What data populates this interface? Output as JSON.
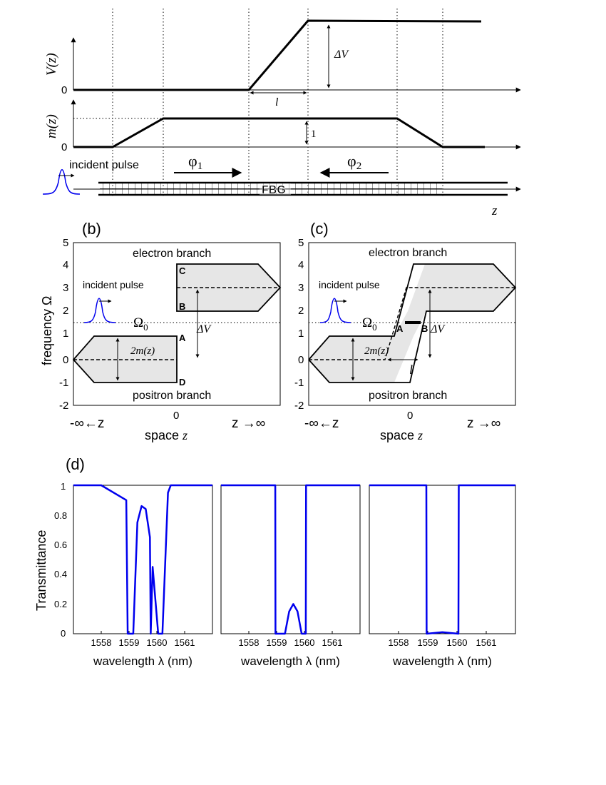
{
  "panel_a": {
    "v_label": "V(z)",
    "v_zero": "0",
    "delta_v": "ΔV",
    "l_label": "l",
    "m_label": "m(z)",
    "m_zero": "0",
    "one_label": "1",
    "incident": "incident pulse",
    "phi1": "φ",
    "phi1_sub": "1",
    "phi2": "φ",
    "phi2_sub": "2",
    "fbg": "FBG",
    "z_label": "z"
  },
  "panel_b": {
    "label": "(b)",
    "electron": "electron branch",
    "positron": "positron branch",
    "incident": "incident pulse",
    "omega0": "Ω",
    "omega0_sub": "0",
    "two_m": "2m(z)",
    "delta_v": "ΔV",
    "pt_a": "A",
    "pt_b": "B",
    "pt_c": "C",
    "pt_d": "D",
    "ylabel": "frequency Ω",
    "xlabel_main": "space ",
    "xlabel_z": "z",
    "x_left": "-∞←z",
    "x_right": "z →∞",
    "x_zero": "0",
    "yticks": [
      "5",
      "4",
      "3",
      "2",
      "1",
      "0",
      "-1",
      "-2"
    ]
  },
  "panel_c": {
    "label": "(c)",
    "electron": "electron branch",
    "positron": "positron branch",
    "incident": "incident pulse",
    "omega0": "Ω",
    "omega0_sub": "0",
    "two_m": "2m(z)",
    "delta_v": "ΔV",
    "l_label": "l",
    "pt_a": "A",
    "pt_b": "B",
    "xlabel_main": "space ",
    "xlabel_z": "z",
    "x_left": "-∞←z",
    "x_right": "z →∞",
    "x_zero": "0",
    "yticks": [
      "5",
      "4",
      "3",
      "2",
      "1",
      "0",
      "-1",
      "-2"
    ]
  },
  "panel_d": {
    "label": "(d)",
    "ylabel": "Transmittance",
    "xlabel": "wavelength λ (nm)",
    "yticks": [
      "1",
      "0.8",
      "0.6",
      "0.4",
      "0.2",
      "0"
    ],
    "xticks": [
      "1558",
      "1559",
      "1560",
      "1561"
    ]
  },
  "colors": {
    "trace": "#0000ee",
    "pulse": "#0000ee",
    "shade": "#e6e6e6"
  },
  "chart_data": [
    {
      "type": "line",
      "title": "",
      "xlabel": "wavelength λ (nm)",
      "ylabel": "Transmittance",
      "xlim": [
        1557,
        1562
      ],
      "ylim": [
        0,
        1
      ],
      "x": [
        1557,
        1558,
        1558.9,
        1558.95,
        1559.0,
        1559.15,
        1559.3,
        1559.45,
        1559.6,
        1559.75,
        1559.78,
        1559.85,
        1560.05,
        1560.1,
        1560.2,
        1560.4,
        1560.5,
        1562
      ],
      "y": [
        1,
        1,
        0.9,
        0.0,
        0.0,
        0.0,
        0.75,
        0.86,
        0.84,
        0.65,
        0.0,
        0.45,
        0.0,
        0.0,
        0.0,
        0.95,
        1,
        1
      ]
    },
    {
      "type": "line",
      "title": "",
      "xlabel": "wavelength λ (nm)",
      "ylabel": "",
      "xlim": [
        1557,
        1562
      ],
      "ylim": [
        0,
        1
      ],
      "x": [
        1557,
        1558.95,
        1558.96,
        1559.3,
        1559.45,
        1559.6,
        1559.75,
        1559.9,
        1560.05,
        1560.06,
        1562
      ],
      "y": [
        1,
        1,
        0.0,
        0.0,
        0.15,
        0.2,
        0.15,
        0.0,
        0.0,
        1,
        1
      ]
    },
    {
      "type": "line",
      "title": "",
      "xlabel": "wavelength λ (nm)",
      "ylabel": "",
      "xlim": [
        1557,
        1562
      ],
      "ylim": [
        0,
        1
      ],
      "x": [
        1557,
        1558.95,
        1558.96,
        1559.5,
        1560.05,
        1560.06,
        1562
      ],
      "y": [
        1,
        1,
        0.0,
        0.01,
        0.0,
        1,
        1
      ]
    }
  ]
}
